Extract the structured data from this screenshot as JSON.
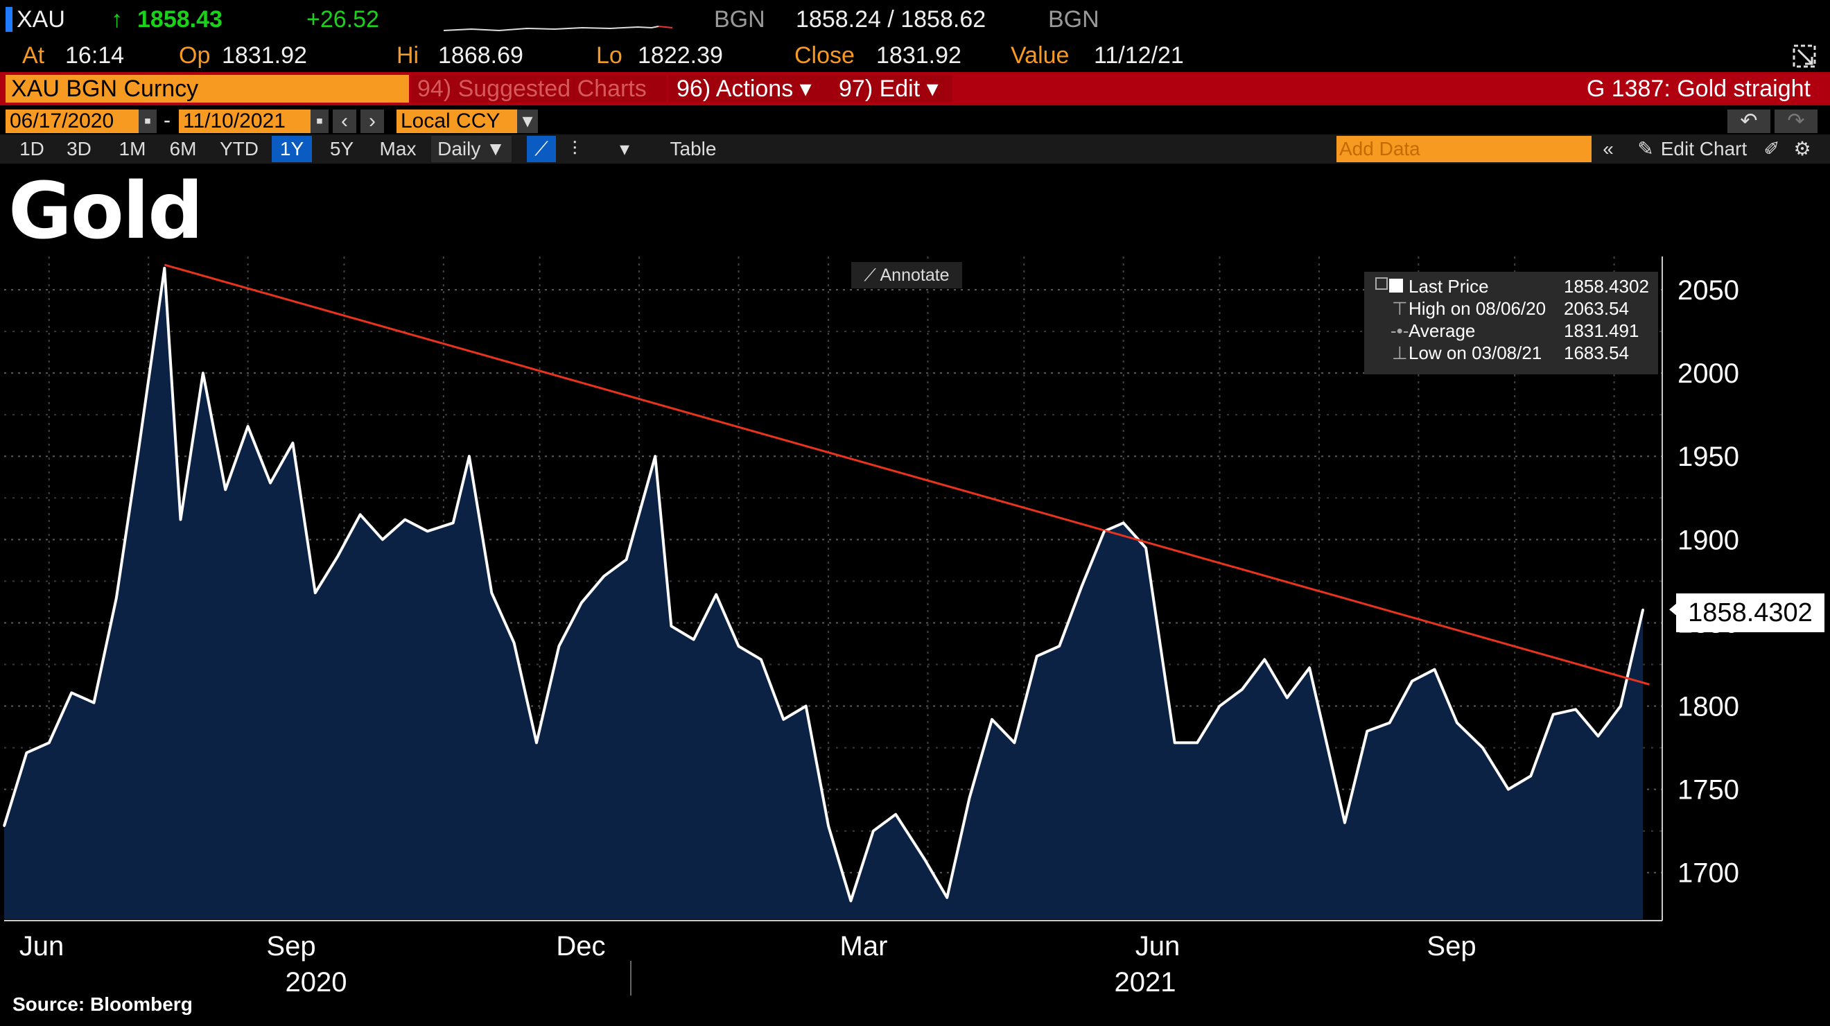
{
  "quote": {
    "ticker": "XAU",
    "arrow": "↑",
    "last": "1858.43",
    "change": "+26.52",
    "source1": "BGN",
    "bid_ask": "1858.24 / 1858.62",
    "source2": "BGN",
    "at_label": "At",
    "at_value": "16:14",
    "op_label": "Op",
    "op_value": "1831.92",
    "hi_label": "Hi",
    "hi_value": "1868.69",
    "lo_label": "Lo",
    "lo_value": "1822.39",
    "close_label": "Close",
    "close_value": "1831.92",
    "value_label": "Value",
    "value_value": "11/12/21"
  },
  "function_bar": {
    "security": "XAU BGN Curncy",
    "suggested": "94) Suggested Charts",
    "actions": "96) Actions ▾",
    "edit": "97) Edit ▾",
    "chart_name": "G 1387: Gold straight"
  },
  "range": {
    "start": "06/17/2020",
    "dash": "-",
    "end": "11/10/2021",
    "currency": "Local CCY"
  },
  "timeframes": [
    "1D",
    "3D",
    "1M",
    "6M",
    "YTD",
    "1Y",
    "5Y",
    "Max"
  ],
  "active_timeframe": "1Y",
  "toolbar": {
    "frequency": "Daily ▼",
    "table": "Table",
    "add_data": "Add Data",
    "edit_chart": "Edit Chart"
  },
  "colors": {
    "accent_orange": "#f79a22",
    "function_red": "#b0000f",
    "area_fill": "#0c2244",
    "price_line": "#ffffff",
    "trend_line": "#e8331f"
  },
  "chart_data": {
    "type": "area",
    "title": "Gold",
    "source": "Source: Bloomberg",
    "annotate_label": "Annotate",
    "ylim": [
      1672,
      2070
    ],
    "yticks": [
      1700,
      1750,
      1800,
      1850,
      1900,
      1950,
      2000,
      2050
    ],
    "x_month_labels": [
      "Jun",
      "Sep",
      "Dec",
      "Mar",
      "Jun",
      "Sep"
    ],
    "x_year_labels": [
      "2020",
      "2021"
    ],
    "x": [
      "2020-06-17",
      "2020-06-24",
      "2020-07-01",
      "2020-07-08",
      "2020-07-15",
      "2020-07-22",
      "2020-07-29",
      "2020-08-06",
      "2020-08-11",
      "2020-08-18",
      "2020-08-25",
      "2020-09-01",
      "2020-09-08",
      "2020-09-15",
      "2020-09-22",
      "2020-09-29",
      "2020-10-06",
      "2020-10-13",
      "2020-10-20",
      "2020-10-27",
      "2020-11-04",
      "2020-11-09",
      "2020-11-16",
      "2020-11-23",
      "2020-11-30",
      "2020-12-07",
      "2020-12-14",
      "2020-12-21",
      "2020-12-28",
      "2021-01-06",
      "2021-01-11",
      "2021-01-18",
      "2021-01-25",
      "2021-02-01",
      "2021-02-08",
      "2021-02-15",
      "2021-02-22",
      "2021-03-01",
      "2021-03-08",
      "2021-03-15",
      "2021-03-22",
      "2021-03-31",
      "2021-04-07",
      "2021-04-14",
      "2021-04-21",
      "2021-04-28",
      "2021-05-05",
      "2021-05-12",
      "2021-05-19",
      "2021-05-26",
      "2021-06-01",
      "2021-06-08",
      "2021-06-17",
      "2021-06-24",
      "2021-07-01",
      "2021-07-08",
      "2021-07-15",
      "2021-07-22",
      "2021-07-29",
      "2021-08-09",
      "2021-08-16",
      "2021-08-23",
      "2021-08-30",
      "2021-09-06",
      "2021-09-13",
      "2021-09-21",
      "2021-09-29",
      "2021-10-06",
      "2021-10-13",
      "2021-10-20",
      "2021-10-27",
      "2021-11-03",
      "2021-11-10"
    ],
    "series": [
      {
        "values": [
          1728,
          1772,
          1778,
          1808,
          1802,
          1865,
          1955,
          2063,
          1912,
          2000,
          1930,
          1968,
          1934,
          1958,
          1868,
          1890,
          1915,
          1900,
          1912,
          1905,
          1910,
          1950,
          1868,
          1838,
          1778,
          1836,
          1862,
          1878,
          1888,
          1950,
          1848,
          1840,
          1867,
          1836,
          1828,
          1792,
          1800,
          1728,
          1683,
          1725,
          1735,
          1708,
          1685,
          1745,
          1792,
          1778,
          1830,
          1836,
          1872,
          1905,
          1910,
          1895,
          1778,
          1778,
          1800,
          1810,
          1828,
          1805,
          1823,
          1730,
          1785,
          1790,
          1815,
          1822,
          1790,
          1775,
          1750,
          1758,
          1795,
          1798,
          1782,
          1800,
          1858
        ]
      }
    ],
    "trend_line": {
      "from": {
        "x": "2020-08-06",
        "y": 2065
      },
      "to": {
        "x": "2021-11-12",
        "y": 1813
      }
    },
    "legend": [
      {
        "label": "Last Price",
        "value": "1858.4302"
      },
      {
        "label": "High on 08/06/20",
        "value": "2063.54"
      },
      {
        "label": "Average",
        "value": "1831.491"
      },
      {
        "label": "Low on 03/08/21",
        "value": "1683.54"
      }
    ],
    "last_value_label": "1858.4302",
    "grid": true,
    "legend_position": "top-right"
  }
}
